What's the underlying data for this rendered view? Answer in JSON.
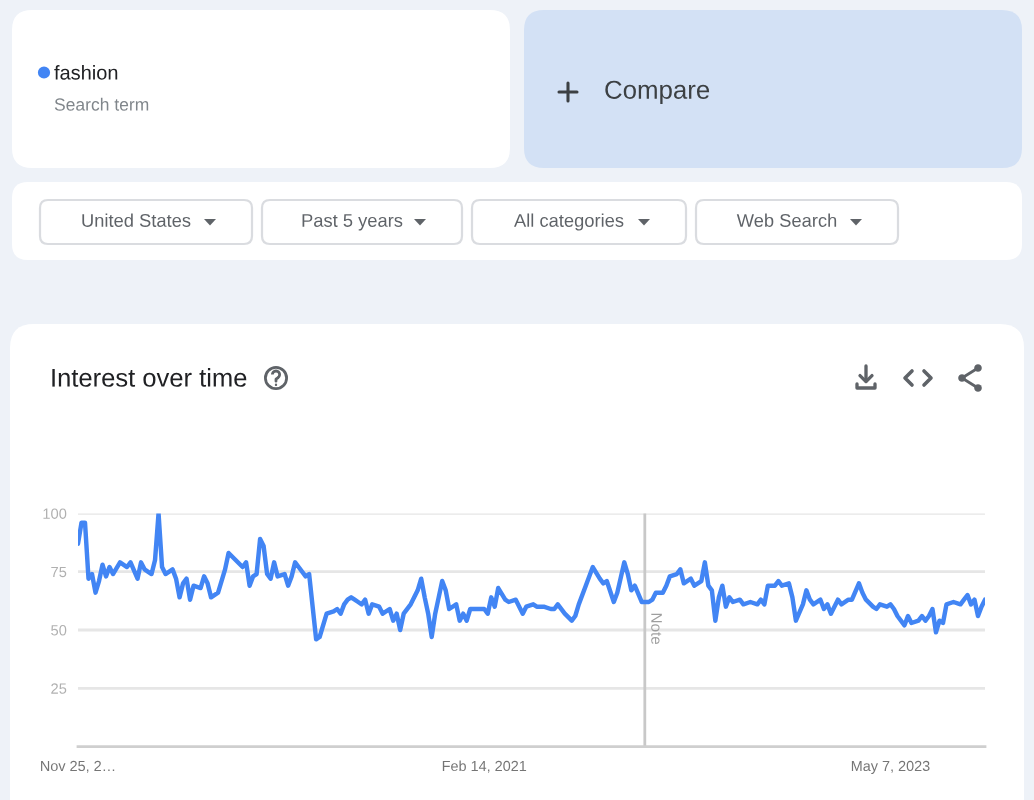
{
  "chart_data": {
    "type": "line",
    "title": "Interest over time",
    "annotations": [
      "Search term",
      "Compare",
      "United States",
      "Past 5 years",
      "All categories",
      "Web Search"
    ],
    "x": [
      "2018-11-25",
      "2018-12-02",
      "2018-12-09",
      "2018-12-16",
      "2018-12-23",
      "2018-12-30",
      "2019-01-06",
      "2019-01-13",
      "2019-01-20",
      "2019-01-27",
      "2019-02-03",
      "2019-02-17",
      "2019-03-03",
      "2019-03-10",
      "2019-03-24",
      "2019-03-31",
      "2019-04-07",
      "2019-04-21",
      "2019-04-28",
      "2019-05-05",
      "2019-05-12",
      "2019-05-19",
      "2019-06-02",
      "2019-06-09",
      "2019-06-16",
      "2019-06-23",
      "2019-06-30",
      "2019-07-07",
      "2019-07-14",
      "2019-07-28",
      "2019-08-04",
      "2019-08-11",
      "2019-08-18",
      "2019-09-01",
      "2019-09-15",
      "2019-09-22",
      "2019-10-06",
      "2019-10-20",
      "2019-10-27",
      "2019-11-03",
      "2019-11-10",
      "2019-11-17",
      "2019-11-24",
      "2019-12-01",
      "2019-12-08",
      "2019-12-15",
      "2019-12-22",
      "2019-12-29",
      "2020-01-12",
      "2020-01-19",
      "2020-01-26",
      "2020-02-02",
      "2020-02-09",
      "2020-02-23",
      "2020-03-01",
      "2020-03-15",
      "2020-03-22",
      "2020-04-05",
      "2020-04-19",
      "2020-04-26",
      "2020-05-03",
      "2020-05-10",
      "2020-05-17",
      "2020-05-24",
      "2020-05-31",
      "2020-06-07",
      "2020-06-14",
      "2020-06-21",
      "2020-06-28",
      "2020-07-05",
      "2020-07-19",
      "2020-07-26",
      "2020-08-09",
      "2020-08-16",
      "2020-08-23",
      "2020-08-30",
      "2020-09-06",
      "2020-09-20",
      "2020-09-27",
      "2020-10-04",
      "2020-10-11",
      "2020-10-18",
      "2020-10-25",
      "2020-11-01",
      "2020-11-08",
      "2020-11-15",
      "2020-11-22",
      "2020-11-29",
      "2020-12-06",
      "2020-12-20",
      "2020-12-27",
      "2021-01-03",
      "2021-01-10",
      "2021-01-17",
      "2021-01-31",
      "2021-02-14",
      "2021-02-21",
      "2021-02-28",
      "2021-03-07",
      "2021-03-14",
      "2021-03-28",
      "2021-04-04",
      "2021-04-18",
      "2021-04-25",
      "2021-05-02",
      "2021-05-09",
      "2021-05-23",
      "2021-05-30",
      "2021-06-13",
      "2021-06-27",
      "2021-07-04",
      "2021-07-11",
      "2021-07-25",
      "2021-08-08",
      "2021-08-15",
      "2021-08-22",
      "2021-09-05",
      "2021-09-19",
      "2021-10-03",
      "2021-10-10",
      "2021-10-17",
      "2021-10-31",
      "2021-11-07",
      "2021-11-21",
      "2021-11-28",
      "2021-12-05",
      "2021-12-12",
      "2021-12-26",
      "2022-01-09",
      "2022-01-16",
      "2022-01-23",
      "2022-02-06",
      "2022-02-13",
      "2022-02-20",
      "2022-03-06",
      "2022-03-13",
      "2022-03-20",
      "2022-04-03",
      "2022-04-10",
      "2022-04-24",
      "2022-05-01",
      "2022-05-08",
      "2022-05-15",
      "2022-05-22",
      "2022-05-29",
      "2022-06-05",
      "2022-06-12",
      "2022-06-19",
      "2022-06-26",
      "2022-07-10",
      "2022-07-17",
      "2022-07-31",
      "2022-08-14",
      "2022-08-21",
      "2022-08-28",
      "2022-09-04",
      "2022-09-18",
      "2022-09-25",
      "2022-10-02",
      "2022-10-16",
      "2022-10-23",
      "2022-10-30",
      "2022-11-13",
      "2022-11-20",
      "2022-11-27",
      "2022-12-04",
      "2022-12-18",
      "2022-12-25",
      "2023-01-01",
      "2023-01-08",
      "2023-01-22",
      "2023-01-29",
      "2023-02-12",
      "2023-02-19",
      "2023-03-05",
      "2023-03-12",
      "2023-03-19",
      "2023-04-02",
      "2023-04-09",
      "2023-04-16",
      "2023-04-30",
      "2023-05-07",
      "2023-05-14",
      "2023-05-21",
      "2023-06-04",
      "2023-06-11",
      "2023-06-18",
      "2023-07-02",
      "2023-07-09",
      "2023-07-16",
      "2023-07-23",
      "2023-07-30",
      "2023-08-06",
      "2023-08-13",
      "2023-08-20",
      "2023-08-27",
      "2023-09-10",
      "2023-09-24",
      "2023-10-01",
      "2023-10-08",
      "2023-10-15",
      "2023-10-22",
      "2023-10-29",
      "2023-11-05",
      "2023-11-12"
    ],
    "series": [
      {
        "name": "fashion",
        "color": "#4285f4",
        "values": [
          87,
          96,
          96,
          72,
          74,
          66,
          71,
          78,
          73,
          77,
          74,
          79,
          77,
          79,
          72,
          79,
          76,
          74,
          80,
          100,
          77,
          74,
          76,
          72,
          64,
          70,
          72,
          63,
          69,
          68,
          73,
          70,
          64,
          66,
          76,
          83,
          80,
          77,
          79,
          69,
          73,
          74,
          89,
          86,
          74,
          72,
          79,
          73,
          74,
          69,
          73,
          79,
          77,
          73,
          74,
          46,
          47,
          57,
          58,
          59,
          57,
          61,
          63,
          64,
          63,
          62,
          61,
          63,
          57,
          61,
          60,
          57,
          59,
          54,
          57,
          50,
          57,
          61,
          64,
          67,
          72,
          64,
          57,
          47,
          57,
          64,
          71,
          67,
          59,
          61,
          54,
          57,
          54,
          59,
          59,
          59,
          57,
          64,
          60,
          68,
          63,
          62,
          63,
          60,
          57,
          60,
          61,
          60,
          60,
          59,
          59,
          61,
          57,
          54,
          56,
          61,
          69,
          77,
          72,
          70,
          71,
          62,
          66,
          79,
          74,
          67,
          69,
          62,
          62,
          63,
          66,
          66,
          69,
          73,
          74,
          76,
          70,
          72,
          69,
          71,
          79,
          69,
          67,
          54,
          64,
          69,
          60,
          64,
          62,
          63,
          61,
          62,
          61,
          63,
          61,
          69,
          69,
          71,
          69,
          70,
          64,
          54,
          61,
          67,
          63,
          61,
          63,
          59,
          61,
          57,
          63,
          61,
          63,
          63,
          70,
          66,
          63,
          60,
          59,
          61,
          60,
          61,
          59,
          56,
          52,
          56,
          53,
          54,
          56,
          54,
          56,
          59,
          49,
          54,
          53,
          61,
          62,
          61,
          63,
          65,
          61,
          63,
          56,
          60,
          63
        ]
      }
    ],
    "line_style": "solid",
    "xlim": [
      "2018-11-25",
      "2023-11-12"
    ],
    "xticks": [
      {
        "value": "2018-11-25",
        "label": "Nov 25, 2…"
      },
      {
        "value": "2021-02-14",
        "label": "Feb 14, 2021"
      },
      {
        "value": "2023-05-07",
        "label": "May 7, 2023"
      }
    ],
    "ylim": [
      0,
      100
    ],
    "yticks": [
      25,
      50,
      75,
      100
    ],
    "grid": "y",
    "legend": "top left",
    "ref_lines": [
      {
        "axis": "x",
        "value": "2022-01-01",
        "label": "Note",
        "color": "#c8c8c8"
      }
    ]
  }
}
